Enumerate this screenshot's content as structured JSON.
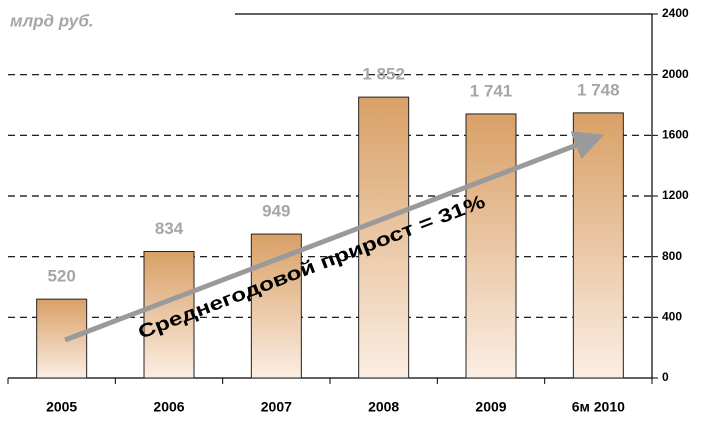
{
  "chart_data": {
    "type": "bar",
    "unit_label": "млрд руб.",
    "annotation": "Среднегодовой прирост = 31%",
    "categories": [
      "2005",
      "2006",
      "2007",
      "2008",
      "2009",
      "6м 2010"
    ],
    "values": [
      520,
      834,
      949,
      1852,
      1741,
      1748
    ],
    "value_labels": [
      "520",
      "834",
      "949",
      "1 852",
      "1 741",
      "1 748"
    ],
    "color": "#d9a066",
    "ylim": [
      0,
      2400
    ],
    "yticks": [
      0,
      400,
      800,
      1200,
      1600,
      2000,
      2400
    ],
    "y_axis_side": "right",
    "grid": true
  }
}
